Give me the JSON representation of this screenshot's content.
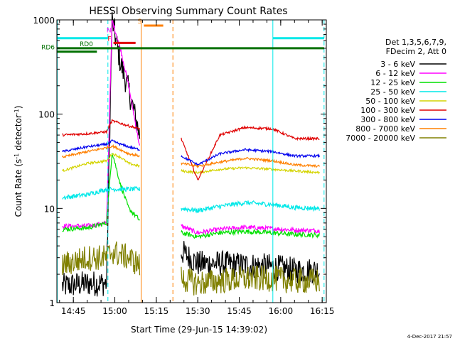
{
  "chart_data": {
    "type": "line",
    "title": "HESSI Observing Summary Count Rates",
    "xlabel": "Start Time (29-Jun-15 14:39:02)",
    "ylabel": "Count Rate (s⁻¹ detector⁻¹)",
    "ylabel_main": "Count Rate (s",
    "ylabel_sup1": "-1",
    "ylabel_mid": " detector",
    "ylabel_sup2": "-1",
    "ylabel_end": ")",
    "footer": "4-Dec-2017 21:57",
    "y_scale": "log",
    "ylim": [
      1,
      1000
    ],
    "xlim": [
      "14:39:02",
      "16:16:30"
    ],
    "x_ticks": [
      "14:45",
      "15:00",
      "15:15",
      "15:30",
      "15:45",
      "16:00",
      "16:15"
    ],
    "y_ticks": [
      "1",
      "10",
      "100",
      "1000"
    ],
    "legend_header": [
      "Det 1,3,5,6,7,9,",
      "FDecim 2, Att 0"
    ],
    "series": [
      {
        "name": "3 - 6 keV",
        "color": "#000000",
        "x": [
          "14:41",
          "14:50",
          "14:57",
          "14:59",
          "15:02",
          "15:05",
          "15:09",
          "15:24",
          "15:30",
          "15:38",
          "15:47",
          "15:57",
          "16:05",
          "16:14"
        ],
        "y": [
          1.5,
          1.6,
          1.6,
          1000,
          350,
          180,
          60,
          3.5,
          2.6,
          2.6,
          2.5,
          2.4,
          2.2,
          2.2
        ]
      },
      {
        "name": "6 - 12 keV",
        "color": "#ff00ff",
        "x": [
          "14:41",
          "14:50",
          "14:57",
          "14:59",
          "15:02",
          "15:05",
          "15:09",
          "15:24",
          "15:30",
          "15:38",
          "15:47",
          "15:57",
          "16:05",
          "16:14"
        ],
        "y": [
          6.5,
          6.5,
          7,
          1000,
          500,
          200,
          45,
          6.5,
          5.5,
          6.0,
          6.3,
          6.1,
          5.9,
          5.8
        ]
      },
      {
        "name": "12 - 25 keV",
        "color": "#00e000",
        "x": [
          "14:41",
          "14:50",
          "14:57",
          "14:59",
          "15:02",
          "15:05",
          "15:09",
          "15:24",
          "15:30",
          "15:38",
          "15:47",
          "15:57",
          "16:05",
          "16:14"
        ],
        "y": [
          6.0,
          6.2,
          7.0,
          40,
          18,
          10,
          7.5,
          5.5,
          5.0,
          5.5,
          5.7,
          5.5,
          5.3,
          5.2
        ]
      },
      {
        "name": "25 - 50 keV",
        "color": "#00e8e8",
        "x": [
          "14:41",
          "14:50",
          "14:57",
          "14:59",
          "15:02",
          "15:05",
          "15:09",
          "15:24",
          "15:30",
          "15:38",
          "15:47",
          "15:57",
          "16:05",
          "16:14"
        ],
        "y": [
          13,
          14,
          16,
          16,
          16,
          16,
          16,
          10,
          9.5,
          10.5,
          11.5,
          11,
          10.2,
          10
        ]
      },
      {
        "name": "50 - 100 keV",
        "color": "#d4d400",
        "x": [
          "14:41",
          "14:50",
          "14:57",
          "14:59",
          "15:02",
          "15:05",
          "15:09",
          "15:24",
          "15:30",
          "15:38",
          "15:47",
          "15:57",
          "16:05",
          "16:14"
        ],
        "y": [
          25,
          30,
          32,
          38,
          35,
          30,
          28,
          25,
          24,
          26,
          27,
          26,
          25,
          24
        ]
      },
      {
        "name": "100 - 300 keV",
        "color": "#e00000",
        "x": [
          "14:41",
          "14:50",
          "14:57",
          "14:59",
          "15:02",
          "15:05",
          "15:09",
          "15:24",
          "15:30",
          "15:38",
          "15:47",
          "15:57",
          "16:05",
          "16:14"
        ],
        "y": [
          60,
          62,
          65,
          85,
          80,
          75,
          70,
          55,
          20,
          60,
          72,
          70,
          55,
          55
        ]
      },
      {
        "name": "300 - 800 keV",
        "color": "#0000ee",
        "x": [
          "14:41",
          "14:50",
          "14:57",
          "14:59",
          "15:02",
          "15:05",
          "15:09",
          "15:24",
          "15:30",
          "15:38",
          "15:47",
          "15:57",
          "16:05",
          "16:14"
        ],
        "y": [
          40,
          45,
          48,
          52,
          48,
          45,
          42,
          36,
          29,
          38,
          42,
          40,
          36,
          36
        ]
      },
      {
        "name": "800 - 7000 keV",
        "color": "#ff8000",
        "x": [
          "14:41",
          "14:50",
          "14:57",
          "14:59",
          "15:02",
          "15:05",
          "15:09",
          "15:24",
          "15:30",
          "15:38",
          "15:47",
          "15:57",
          "16:05",
          "16:14"
        ],
        "y": [
          35,
          40,
          44,
          46,
          42,
          38,
          36,
          30,
          28,
          31,
          34,
          32,
          29,
          28
        ]
      },
      {
        "name": "7000 - 20000 keV",
        "color": "#808000",
        "x": [
          "14:41",
          "14:50",
          "14:57",
          "14:59",
          "15:02",
          "15:05",
          "15:09",
          "15:24",
          "15:30",
          "15:38",
          "15:47",
          "15:57",
          "16:05",
          "16:14"
        ],
        "y": [
          2.5,
          3.0,
          3.0,
          3.5,
          3.2,
          3.0,
          2.5,
          1.8,
          1.6,
          1.7,
          1.8,
          1.8,
          1.7,
          1.7
        ]
      }
    ],
    "flag_bars": [
      {
        "label": "",
        "color": "#00e8e8",
        "x": [
          "14:39:02",
          "14:57:30"
        ],
        "y": 640
      },
      {
        "label": "",
        "color": "#00e8e8",
        "x": [
          "15:57:10",
          "16:15:40"
        ],
        "y": 640
      },
      {
        "label": "RD0",
        "color": "#007000",
        "x": [
          "14:39:02",
          "16:15:40"
        ],
        "y": 500
      },
      {
        "label": "RD6",
        "color": "#007000",
        "x": [
          "14:39:02",
          "14:53:30"
        ],
        "y": 460
      },
      {
        "label": "F",
        "color": "#e00000",
        "x": [
          "14:59:30",
          "15:07:30"
        ],
        "y": 570
      },
      {
        "label": "S",
        "color": "#ff8000",
        "x": [
          "15:10:30",
          "15:17:30"
        ],
        "y": 870
      },
      {
        "label": "N",
        "color": "#ff00ff",
        "x": [
          "14:59:30",
          "14:59:30"
        ],
        "y": 700
      }
    ],
    "vlines": [
      {
        "x": "14:39:10",
        "color": "#00e8e8",
        "style": "solid"
      },
      {
        "x": "14:57:30",
        "color": "#00e8e8",
        "style": "dashed"
      },
      {
        "x": "15:09:30",
        "color": "#ff8000",
        "style": "solid"
      },
      {
        "x": "15:21:00",
        "color": "#ff8000",
        "style": "dashed"
      },
      {
        "x": "15:57:10",
        "color": "#00e8e8",
        "style": "solid"
      },
      {
        "x": "16:15:40",
        "color": "#00e8e8",
        "style": "dashed"
      }
    ],
    "gaps": [
      [
        "15:09:10",
        "15:24:00"
      ]
    ],
    "grid": false,
    "legend_position": "right"
  }
}
